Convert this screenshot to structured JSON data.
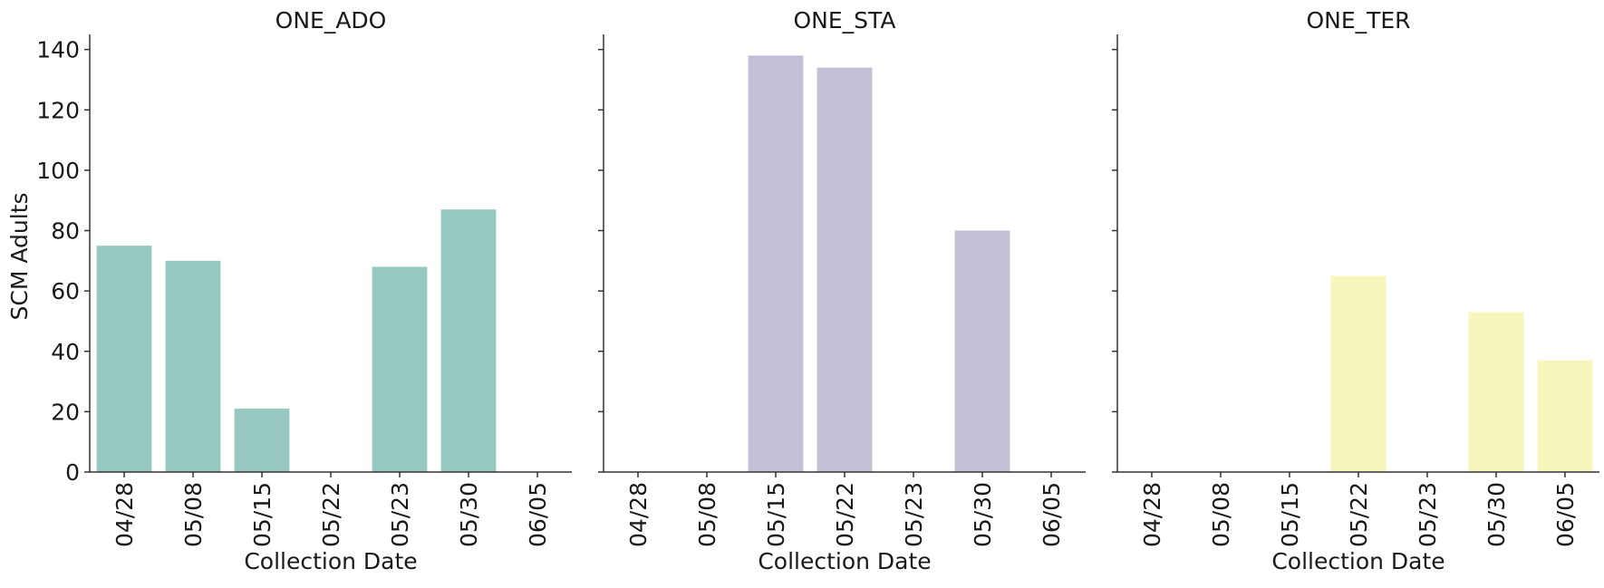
{
  "figure": {
    "ylabel": "SCM Adults"
  },
  "chart_data": [
    {
      "type": "bar",
      "title": "ONE_ADO",
      "categories": [
        "04/28",
        "05/08",
        "05/15",
        "05/22",
        "05/23",
        "05/30",
        "06/05"
      ],
      "values": [
        75,
        70,
        21,
        0,
        68,
        87,
        0
      ],
      "color": "#97c9c1",
      "xlabel": "Collection Date",
      "ylabel": "SCM Adults",
      "ylim": [
        0,
        145
      ],
      "yticks": [
        0,
        20,
        40,
        60,
        80,
        100,
        120,
        140
      ],
      "grid": false
    },
    {
      "type": "bar",
      "title": "ONE_STA",
      "categories": [
        "04/28",
        "05/08",
        "05/15",
        "05/22",
        "05/23",
        "05/30",
        "06/05"
      ],
      "values": [
        0,
        0,
        138,
        134,
        0,
        80,
        0
      ],
      "color": "#c3bfd6",
      "xlabel": "Collection Date",
      "ylim": [
        0,
        145
      ],
      "grid": false
    },
    {
      "type": "bar",
      "title": "ONE_TER",
      "categories": [
        "04/28",
        "05/08",
        "05/15",
        "05/22",
        "05/23",
        "05/30",
        "06/05"
      ],
      "values": [
        0,
        0,
        0,
        65,
        0,
        53,
        37
      ],
      "color": "#f5f5bc",
      "xlabel": "Collection Date",
      "ylim": [
        0,
        145
      ],
      "grid": false
    }
  ]
}
